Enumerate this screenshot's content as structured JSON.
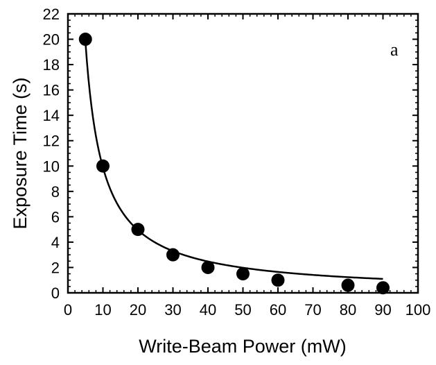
{
  "chart_data": {
    "type": "scatter",
    "panel_label": "a",
    "xlabel": "Write-Beam Power (mW)",
    "ylabel": "Exposure Time (s)",
    "xlim": [
      0,
      100
    ],
    "ylim": [
      0,
      22
    ],
    "x_ticks": [
      "0",
      "10",
      "20",
      "30",
      "40",
      "50",
      "60",
      "70",
      "80",
      "90",
      "100"
    ],
    "y_ticks": [
      "0",
      "2",
      "4",
      "6",
      "8",
      "10",
      "12",
      "14",
      "16",
      "18",
      "20",
      "22"
    ],
    "x_tick_values": [
      0,
      10,
      20,
      30,
      40,
      50,
      60,
      70,
      80,
      90,
      100
    ],
    "y_tick_values": [
      0,
      2,
      4,
      6,
      8,
      10,
      12,
      14,
      16,
      18,
      20,
      22
    ],
    "series": [
      {
        "x": [
          5,
          10,
          20,
          30,
          40,
          50,
          60,
          80,
          90
        ],
        "y": [
          20,
          10,
          5,
          3,
          2,
          1.5,
          1,
          0.6,
          0.4
        ]
      }
    ],
    "fit_curve": {
      "x_range": [
        5,
        90
      ]
    },
    "grid": false,
    "colors": {
      "marker": "#000000",
      "line": "#000000",
      "axes": "#000000"
    }
  }
}
